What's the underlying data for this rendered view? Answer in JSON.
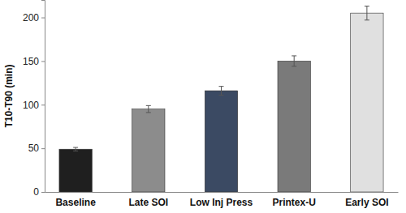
{
  "chart_data": {
    "type": "bar",
    "y_label": "T10-T90 (min)",
    "categories": [
      "Baseline",
      "Late SOI",
      "Low Inj Press",
      "Printex-U",
      "Early SOI"
    ],
    "values": [
      49,
      95,
      116,
      150,
      205
    ],
    "errors": [
      2,
      4,
      5,
      6,
      8
    ],
    "colors": [
      "#1f1f1f",
      "#8c8c8c",
      "#3b4a63",
      "#7a7a7a",
      "#e0e0e0"
    ],
    "ylim": [
      0,
      220
    ],
    "yticks": [
      0,
      50,
      100,
      150,
      200
    ],
    "grid": false
  }
}
